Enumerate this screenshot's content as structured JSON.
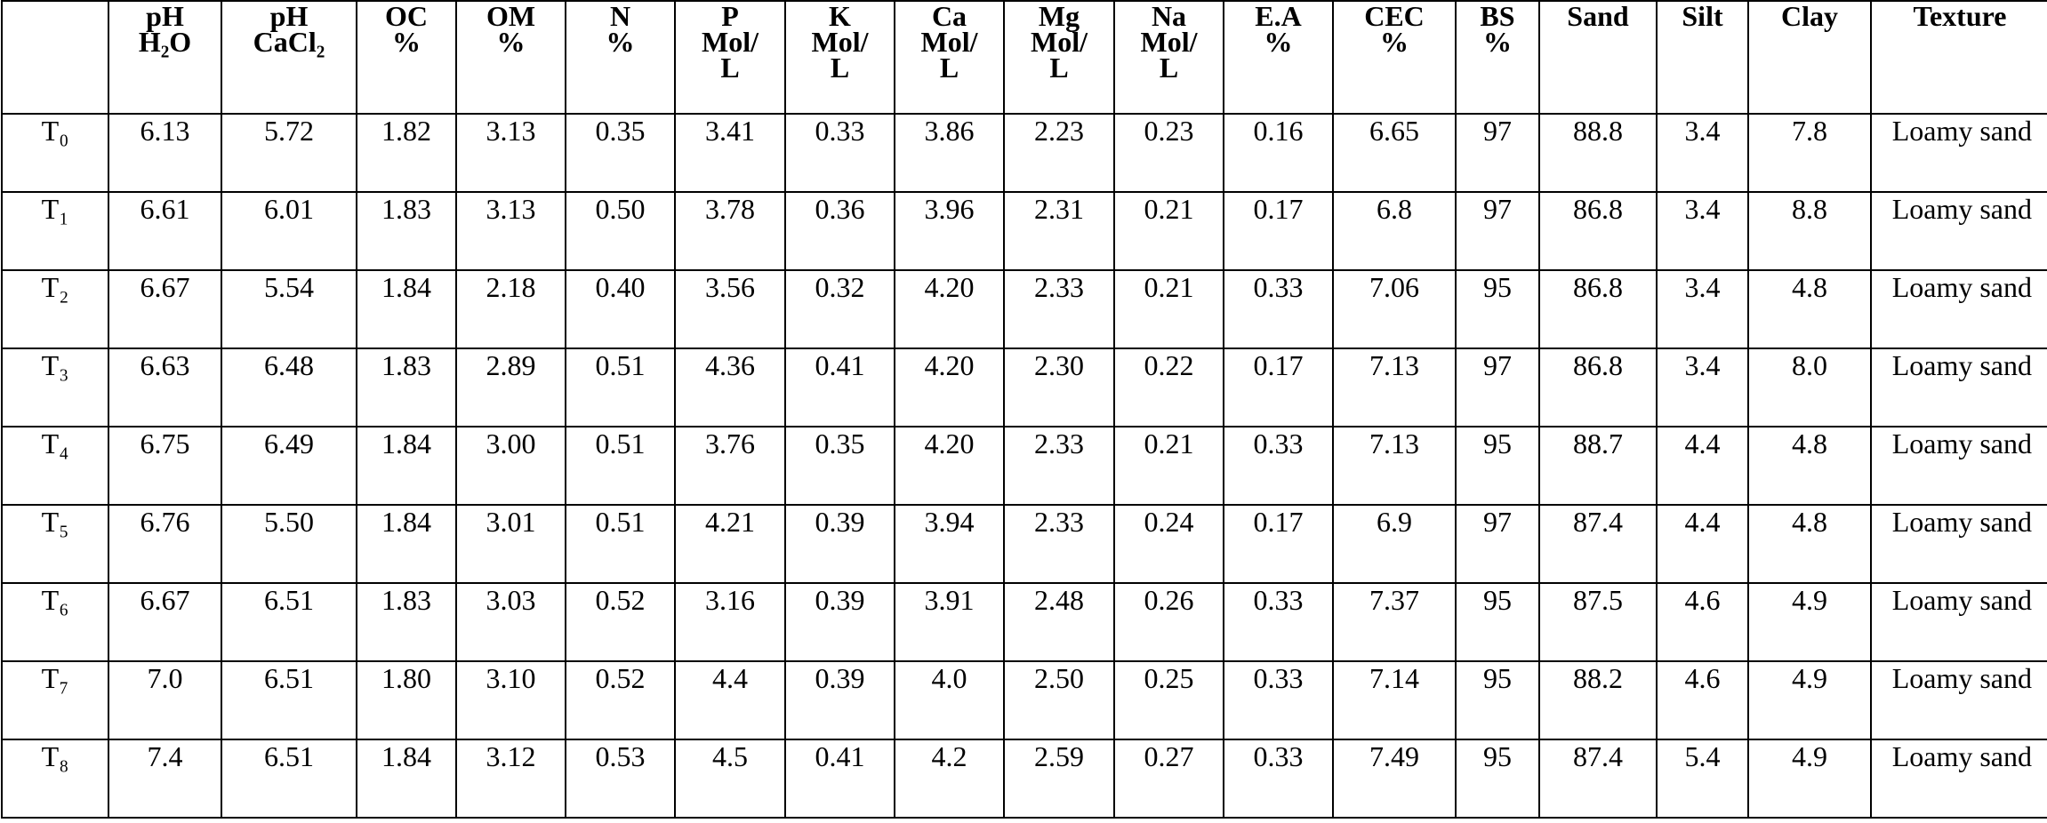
{
  "table": {
    "header": [
      "",
      "pH\nH₂O",
      "pH\nCaCl₂",
      "OC\n%",
      "OM\n%",
      "N\n%",
      "P\nMol/\nL",
      "K\nMol/\nL",
      "Ca\nMol/\nL",
      "Mg\nMol/\nL",
      "Na\nMol/\nL",
      "E.A\n%",
      "CEC\n%",
      "BS\n%",
      "Sand",
      "Silt",
      "Clay",
      "Texture"
    ],
    "rows": [
      [
        "T₀",
        "6.13",
        "5.72",
        "1.82",
        "3.13",
        "0.35",
        "3.41",
        "0.33",
        "3.86",
        "2.23",
        "0.23",
        "0.16",
        "6.65",
        "97",
        "88.8",
        "3.4",
        "7.8",
        "Loamy sand"
      ],
      [
        "T₁",
        "6.61",
        "6.01",
        "1.83",
        "3.13",
        "0.50",
        "3.78",
        "0.36",
        "3.96",
        "2.31",
        "0.21",
        "0.17",
        "6.8",
        "97",
        "86.8",
        "3.4",
        "8.8",
        "Loamy sand"
      ],
      [
        "T₂",
        "6.67",
        "5.54",
        "1.84",
        "2.18",
        "0.40",
        "3.56",
        "0.32",
        "4.20",
        "2.33",
        "0.21",
        "0.33",
        "7.06",
        "95",
        "86.8",
        "3.4",
        "4.8",
        "Loamy sand"
      ],
      [
        "T₃",
        "6.63",
        "6.48",
        "1.83",
        "2.89",
        "0.51",
        "4.36",
        "0.41",
        "4.20",
        "2.30",
        "0.22",
        "0.17",
        "7.13",
        "97",
        "86.8",
        "3.4",
        "8.0",
        "Loamy sand"
      ],
      [
        "T₄",
        "6.75",
        "6.49",
        "1.84",
        "3.00",
        "0.51",
        "3.76",
        "0.35",
        "4.20",
        "2.33",
        "0.21",
        "0.33",
        "7.13",
        "95",
        "88.7",
        "4.4",
        "4.8",
        "Loamy sand"
      ],
      [
        "T₅",
        "6.76",
        "5.50",
        "1.84",
        "3.01",
        "0.51",
        "4.21",
        "0.39",
        "3.94",
        "2.33",
        "0.24",
        "0.17",
        "6.9",
        "97",
        "87.4",
        "4.4",
        "4.8",
        "Loamy sand"
      ],
      [
        "T₆",
        "6.67",
        "6.51",
        "1.83",
        "3.03",
        "0.52",
        "3.16",
        "0.39",
        "3.91",
        "2.48",
        "0.26",
        "0.33",
        "7.37",
        "95",
        "87.5",
        "4.6",
        "4.9",
        "Loamy sand"
      ],
      [
        "T₇",
        "7.0",
        "6.51",
        "1.80",
        "3.10",
        "0.52",
        "4.4",
        "0.39",
        "4.0",
        "2.50",
        "0.25",
        "0.33",
        "7.14",
        "95",
        "88.2",
        "4.6",
        "4.9",
        "Loamy sand"
      ],
      [
        "T₈",
        "7.4",
        "6.51",
        "1.84",
        "3.12",
        "0.53",
        "4.5",
        "0.41",
        "4.2",
        "2.59",
        "0.27",
        "0.33",
        "7.49",
        "95",
        "87.4",
        "5.4",
        "4.9",
        "Loamy sand"
      ]
    ]
  }
}
